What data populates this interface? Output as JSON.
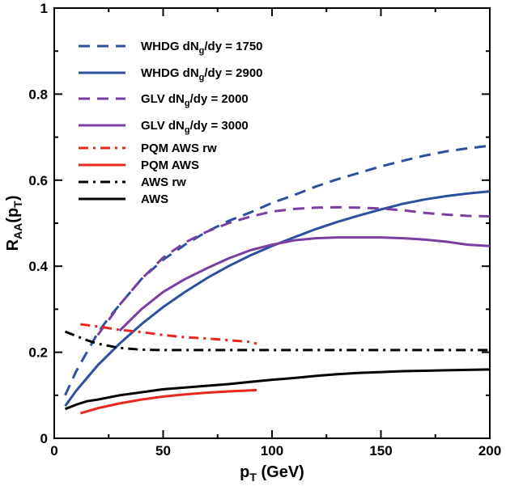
{
  "chart_data": {
    "type": "line",
    "xlabel": "p_T (GeV)",
    "ylabel": "R_AA(p_T)",
    "xlim": [
      0,
      200
    ],
    "ylim": [
      0,
      1
    ],
    "x_ticks": [
      0,
      50,
      100,
      150,
      200
    ],
    "y_ticks": [
      0,
      0.2,
      0.4,
      0.6,
      0.8,
      1
    ],
    "x_tick_labels": [
      "0",
      "50",
      "100",
      "150",
      "200"
    ],
    "y_tick_labels": [
      "0",
      "0.2",
      "0.4",
      "0.6",
      "0.8",
      "1"
    ],
    "grid": false,
    "legend_position": "top-left",
    "series": [
      {
        "name": "WHDG dN_g/dy = 1750",
        "color": "#2d4fa0",
        "dash": "dashed",
        "x": [
          5,
          10,
          15,
          20,
          25,
          30,
          40,
          50,
          60,
          70,
          80,
          90,
          100,
          110,
          120,
          130,
          140,
          150,
          160,
          170,
          180,
          190,
          200
        ],
        "y": [
          0.1,
          0.155,
          0.2,
          0.245,
          0.28,
          0.31,
          0.37,
          0.415,
          0.45,
          0.48,
          0.505,
          0.525,
          0.547,
          0.565,
          0.585,
          0.602,
          0.617,
          0.632,
          0.645,
          0.657,
          0.667,
          0.674,
          0.68
        ]
      },
      {
        "name": "WHDG dN_g/dy = 2900",
        "color": "#2d4fa0",
        "dash": "solid",
        "x": [
          5,
          10,
          20,
          30,
          40,
          50,
          60,
          70,
          80,
          90,
          100,
          110,
          120,
          130,
          140,
          150,
          160,
          170,
          180,
          190,
          200
        ],
        "y": [
          0.075,
          0.11,
          0.17,
          0.22,
          0.265,
          0.305,
          0.34,
          0.372,
          0.4,
          0.425,
          0.447,
          0.467,
          0.486,
          0.503,
          0.518,
          0.532,
          0.545,
          0.555,
          0.563,
          0.569,
          0.574
        ]
      },
      {
        "name": "GLV dN_g/dy = 2000",
        "color": "#7a3fa0",
        "dash": "dashed",
        "x": [
          20,
          25,
          30,
          40,
          50,
          60,
          70,
          80,
          90,
          100,
          110,
          120,
          130,
          140,
          150,
          160,
          170,
          180,
          190,
          200
        ],
        "y": [
          0.24,
          0.275,
          0.31,
          0.37,
          0.42,
          0.455,
          0.48,
          0.5,
          0.515,
          0.527,
          0.533,
          0.536,
          0.537,
          0.536,
          0.534,
          0.53,
          0.524,
          0.52,
          0.517,
          0.516
        ]
      },
      {
        "name": "GLV dN_g/dy = 3000",
        "color": "#7a3fa0",
        "dash": "solid",
        "x": [
          30,
          40,
          50,
          60,
          70,
          80,
          90,
          100,
          110,
          120,
          130,
          140,
          150,
          160,
          170,
          180,
          190,
          200
        ],
        "y": [
          0.25,
          0.3,
          0.34,
          0.37,
          0.395,
          0.418,
          0.437,
          0.45,
          0.46,
          0.465,
          0.467,
          0.467,
          0.467,
          0.465,
          0.462,
          0.457,
          0.45,
          0.447
        ]
      },
      {
        "name": "PQM AWS rw",
        "color": "#e8281e",
        "dash": "dashdot",
        "x": [
          12,
          20,
          30,
          40,
          50,
          60,
          70,
          80,
          90,
          93
        ],
        "y": [
          0.265,
          0.26,
          0.252,
          0.247,
          0.24,
          0.235,
          0.232,
          0.228,
          0.224,
          0.22
        ]
      },
      {
        "name": "PQM AWS",
        "color": "#e8281e",
        "dash": "solid",
        "x": [
          12,
          20,
          30,
          40,
          50,
          60,
          70,
          80,
          93
        ],
        "y": [
          0.058,
          0.07,
          0.081,
          0.09,
          0.097,
          0.102,
          0.106,
          0.109,
          0.112
        ]
      },
      {
        "name": "AWS rw",
        "color": "#000000",
        "dash": "dashdot",
        "x": [
          5,
          10,
          15,
          20,
          30,
          40,
          50,
          60,
          80,
          100,
          120,
          150,
          180,
          200
        ],
        "y": [
          0.248,
          0.238,
          0.228,
          0.22,
          0.21,
          0.206,
          0.205,
          0.205,
          0.205,
          0.205,
          0.205,
          0.205,
          0.205,
          0.205
        ]
      },
      {
        "name": "AWS",
        "color": "#000000",
        "dash": "solid",
        "x": [
          5,
          10,
          15,
          20,
          30,
          40,
          50,
          60,
          70,
          80,
          90,
          100,
          110,
          120,
          130,
          140,
          150,
          160,
          170,
          180,
          190,
          200
        ],
        "y": [
          0.068,
          0.078,
          0.086,
          0.09,
          0.1,
          0.107,
          0.114,
          0.118,
          0.122,
          0.126,
          0.131,
          0.136,
          0.14,
          0.145,
          0.149,
          0.152,
          0.154,
          0.156,
          0.157,
          0.158,
          0.159,
          0.16
        ]
      }
    ],
    "legend": [
      {
        "series": 0,
        "pre": "WHDG dN",
        "sub": "g",
        "post": "/dy = 1750"
      },
      {
        "series": 1,
        "pre": "WHDG dN",
        "sub": "g",
        "post": "/dy = 2900"
      },
      {
        "series": 2,
        "pre": "GLV dN",
        "sub": "g",
        "post": "/dy = 2000"
      },
      {
        "series": 3,
        "pre": "GLV dN",
        "sub": "g",
        "post": "/dy = 3000"
      },
      {
        "series": 4,
        "pre": "PQM AWS rw",
        "sub": "",
        "post": ""
      },
      {
        "series": 5,
        "pre": "PQM AWS",
        "sub": "",
        "post": ""
      },
      {
        "series": 6,
        "pre": "AWS rw",
        "sub": "",
        "post": ""
      },
      {
        "series": 7,
        "pre": "AWS",
        "sub": "",
        "post": ""
      }
    ],
    "x_title": {
      "pre": "p",
      "sub": "T",
      "post": " (GeV)"
    },
    "y_title": {
      "pre": "R",
      "sub": "AA",
      "mid": "(p",
      "sub2": "T",
      "post": ")"
    }
  }
}
